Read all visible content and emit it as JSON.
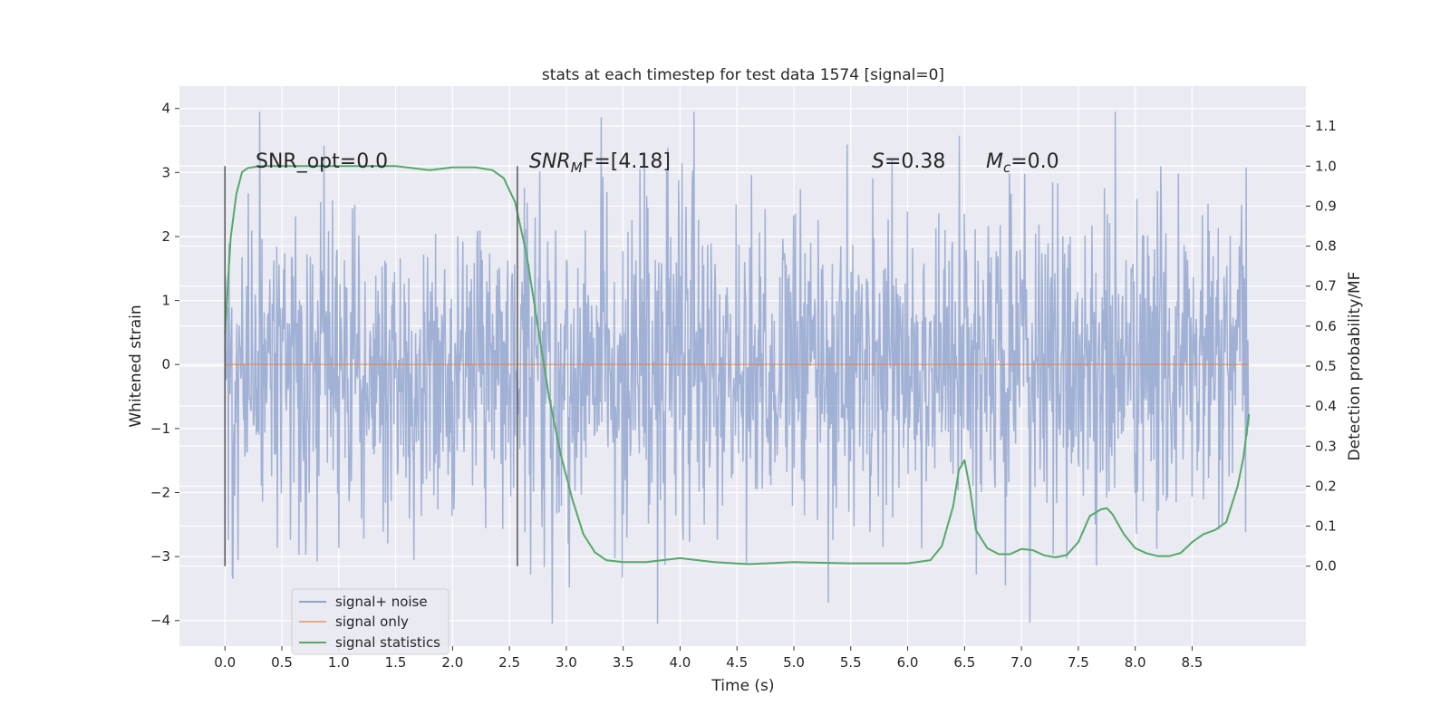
{
  "chart_data": {
    "type": "line",
    "title": "stats at each timestep for test data 1574 [signal=0]",
    "xlabel": "Time (s)",
    "ylabel": "Whitened strain",
    "ylabel_right": "Detection probability/MF",
    "xlim": [
      -0.4,
      9.5
    ],
    "ylim": [
      -4.4,
      4.35
    ],
    "ylim_right": [
      -0.2,
      1.2
    ],
    "x_ticks": [
      0.0,
      0.5,
      1.0,
      1.5,
      2.0,
      2.5,
      3.0,
      3.5,
      4.0,
      4.5,
      5.0,
      5.5,
      6.0,
      6.5,
      7.0,
      7.5,
      8.0,
      8.5
    ],
    "x_tick_labels": [
      "0.0",
      "0.5",
      "1.0",
      "1.5",
      "2.0",
      "2.5",
      "3.0",
      "3.5",
      "4.0",
      "4.5",
      "5.0",
      "5.5",
      "6.0",
      "6.5",
      "7.0",
      "7.5",
      "8.0",
      "8.5"
    ],
    "y_ticks": [
      4,
      3,
      2,
      1,
      0,
      -1,
      -2,
      -3,
      -4
    ],
    "y_tick_labels": [
      "4",
      "3",
      "2",
      "1",
      "0",
      "−1",
      "−2",
      "−3",
      "−4"
    ],
    "y_right_ticks": [
      1.1,
      1.0,
      0.9,
      0.8,
      0.7,
      0.6,
      0.5,
      0.4,
      0.3,
      0.2,
      0.1,
      0.0
    ],
    "y_right_tick_labels": [
      "1.1",
      "1.0",
      "0.9",
      "0.8",
      "0.7",
      "0.6",
      "0.5",
      "0.4",
      "0.3",
      "0.2",
      "0.1",
      "0.0"
    ],
    "grid": true,
    "legend_position": "lower-left",
    "legend": [
      "signal+ noise",
      "signal only",
      "signal statistics"
    ],
    "annotations": {
      "snr_opt": "SNR_opt=0.0",
      "snr_mf_main": "SNR",
      "snr_mf_sub": "M",
      "snr_mf_rest": "F=[4.18]",
      "s_main": "S",
      "s_rest": "=0.38",
      "mc_main": "M",
      "mc_sub": "c",
      "mc_rest": "=0.0"
    },
    "vertical_markers": [
      {
        "x": 0.0,
        "y_range": [
          -3.15,
          3.1
        ]
      },
      {
        "x": 2.57,
        "y_range": [
          -3.15,
          3.1
        ]
      }
    ],
    "series": [
      {
        "name": "signal+ noise",
        "color": "#8fa3cd",
        "x_range": [
          0.0,
          9.0
        ],
        "n_samples": 1800,
        "typical_amplitude": 1.25,
        "max": 3.95,
        "min": -4.05
      },
      {
        "name": "signal only",
        "color": "#dd8452",
        "x": [
          0.0,
          9.0
        ],
        "y": [
          0.0,
          0.0
        ]
      },
      {
        "name": "signal statistics",
        "color": "#55a868",
        "axis": "right",
        "x": [
          0.0,
          0.05,
          0.1,
          0.15,
          0.2,
          0.3,
          0.5,
          1.0,
          1.5,
          1.8,
          2.0,
          2.2,
          2.35,
          2.45,
          2.55,
          2.65,
          2.75,
          2.85,
          2.95,
          3.05,
          3.15,
          3.25,
          3.35,
          3.5,
          3.7,
          4.0,
          4.3,
          4.6,
          5.0,
          5.5,
          6.0,
          6.2,
          6.3,
          6.4,
          6.45,
          6.5,
          6.55,
          6.6,
          6.7,
          6.8,
          6.9,
          7.0,
          7.1,
          7.2,
          7.3,
          7.4,
          7.5,
          7.6,
          7.7,
          7.75,
          7.8,
          7.9,
          8.0,
          8.1,
          8.2,
          8.3,
          8.4,
          8.5,
          8.6,
          8.7,
          8.8,
          8.9,
          8.95,
          9.0
        ],
        "y": [
          0.58,
          0.82,
          0.93,
          0.985,
          0.995,
          1.0,
          1.0,
          1.0,
          1.0,
          0.99,
          0.997,
          0.997,
          0.99,
          0.97,
          0.91,
          0.78,
          0.6,
          0.42,
          0.28,
          0.17,
          0.08,
          0.035,
          0.015,
          0.01,
          0.01,
          0.02,
          0.01,
          0.005,
          0.01,
          0.007,
          0.007,
          0.015,
          0.05,
          0.15,
          0.24,
          0.265,
          0.19,
          0.09,
          0.045,
          0.03,
          0.03,
          0.043,
          0.04,
          0.027,
          0.022,
          0.028,
          0.06,
          0.125,
          0.142,
          0.145,
          0.13,
          0.08,
          0.045,
          0.032,
          0.025,
          0.025,
          0.033,
          0.06,
          0.08,
          0.09,
          0.11,
          0.2,
          0.27,
          0.38
        ]
      }
    ]
  }
}
